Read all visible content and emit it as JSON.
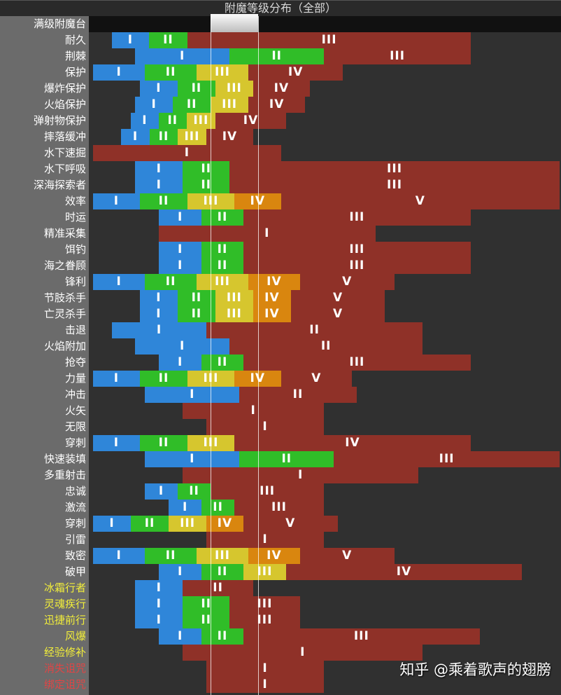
{
  "chart_data": {
    "type": "bar",
    "subtype": "horizontal-stacked-ranges",
    "title": "附魔等级分布（全部）",
    "xlim": [
      0,
      100
    ],
    "highlight_row": "满级附魔台",
    "highlight_range": [
      25.8,
      35.9
    ],
    "levels": [
      "I",
      "II",
      "III",
      "IV",
      "V"
    ],
    "colors": {
      "I": "#2f86d9",
      "II": "#30bd28",
      "III": "#d6c62e",
      "IV": "#d9860f",
      "last": "#8f3128"
    },
    "label_colors": {
      "normal": "#ffffff",
      "treasure": "#f2ee3a",
      "curse": "#e04545"
    },
    "rows": [
      {
        "name": "耐久",
        "kind": "normal",
        "bounds": [
          4.9,
          12.7,
          20.9,
          80.9
        ]
      },
      {
        "name": "荆棘",
        "kind": "normal",
        "bounds": [
          9.8,
          29.8,
          49.8,
          80.9
        ]
      },
      {
        "name": "保护",
        "kind": "normal",
        "bounds": [
          0.9,
          11.9,
          22.8,
          33.8,
          53.8
        ]
      },
      {
        "name": "爆炸保护",
        "kind": "normal",
        "bounds": [
          10.8,
          18.8,
          26.8,
          34.8,
          46.8
        ]
      },
      {
        "name": "火焰保护",
        "kind": "normal",
        "bounds": [
          9.8,
          17.8,
          25.8,
          33.8,
          45.8
        ]
      },
      {
        "name": "弹射物保护",
        "kind": "normal",
        "bounds": [
          8.9,
          14.8,
          20.7,
          26.8,
          41.8
        ]
      },
      {
        "name": "摔落缓冲",
        "kind": "normal",
        "bounds": [
          6.8,
          12.9,
          18.8,
          24.9,
          34.8
        ]
      },
      {
        "name": "水下速掘",
        "kind": "normal",
        "bounds": [
          0.9,
          40.7
        ]
      },
      {
        "name": "水下呼吸",
        "kind": "normal",
        "bounds": [
          9.8,
          19.9,
          29.8,
          99.7
        ]
      },
      {
        "name": "深海探索者",
        "kind": "normal",
        "bounds": [
          9.8,
          19.9,
          29.8,
          99.7
        ]
      },
      {
        "name": "效率",
        "kind": "normal",
        "bounds": [
          0.9,
          10.8,
          20.9,
          30.8,
          40.7,
          99.7
        ]
      },
      {
        "name": "时运",
        "kind": "normal",
        "bounds": [
          14.8,
          23.9,
          32.7,
          80.9
        ]
      },
      {
        "name": "精准采集",
        "kind": "normal",
        "bounds": [
          14.8,
          60.7
        ]
      },
      {
        "name": "饵钓",
        "kind": "normal",
        "bounds": [
          14.8,
          23.9,
          32.7,
          80.9
        ]
      },
      {
        "name": "海之眷顾",
        "kind": "normal",
        "bounds": [
          14.8,
          23.9,
          32.7,
          80.9
        ]
      },
      {
        "name": "锋利",
        "kind": "normal",
        "bounds": [
          0.9,
          11.9,
          22.8,
          33.8,
          44.7,
          64.7
        ]
      },
      {
        "name": "节肢杀手",
        "kind": "normal",
        "bounds": [
          10.8,
          18.8,
          26.8,
          34.8,
          42.8,
          62.7
        ]
      },
      {
        "name": "亡灵杀手",
        "kind": "normal",
        "bounds": [
          10.8,
          18.8,
          26.8,
          34.8,
          42.8,
          62.7
        ]
      },
      {
        "name": "击退",
        "kind": "normal",
        "bounds": [
          4.9,
          24.9,
          70.7
        ]
      },
      {
        "name": "火焰附加",
        "kind": "normal",
        "bounds": [
          9.8,
          29.8,
          70.7
        ]
      },
      {
        "name": "抢夺",
        "kind": "normal",
        "bounds": [
          14.8,
          23.9,
          32.7,
          80.9
        ]
      },
      {
        "name": "力量",
        "kind": "normal",
        "bounds": [
          0.9,
          10.8,
          20.9,
          30.8,
          40.7,
          55.7
        ]
      },
      {
        "name": "冲击",
        "kind": "normal",
        "bounds": [
          11.9,
          31.9,
          56.7
        ]
      },
      {
        "name": "火矢",
        "kind": "normal",
        "bounds": [
          19.9,
          49.8
        ]
      },
      {
        "name": "无限",
        "kind": "normal",
        "bounds": [
          24.9,
          49.8
        ]
      },
      {
        "name": "穿刺",
        "kind": "normal",
        "bounds": [
          0.9,
          10.8,
          20.9,
          30.8,
          80.9
        ]
      },
      {
        "name": "快速装填",
        "kind": "normal",
        "bounds": [
          11.9,
          31.9,
          51.9,
          99.7
        ]
      },
      {
        "name": "多重射击",
        "kind": "normal",
        "bounds": [
          19.9,
          69.8
        ]
      },
      {
        "name": "忠诚",
        "kind": "normal",
        "bounds": [
          11.9,
          18.8,
          25.8,
          49.8
        ]
      },
      {
        "name": "激流",
        "kind": "normal",
        "bounds": [
          16.9,
          23.9,
          30.8,
          49.8
        ]
      },
      {
        "name": "穿刺",
        "kind": "normal",
        "bounds": [
          0.9,
          8.9,
          16.9,
          24.9,
          32.7,
          52.7
        ]
      },
      {
        "name": "引雷",
        "kind": "normal",
        "bounds": [
          24.9,
          49.8
        ]
      },
      {
        "name": "致密",
        "kind": "normal",
        "bounds": [
          0.9,
          11.9,
          22.8,
          33.8,
          44.7,
          64.7
        ]
      },
      {
        "name": "破甲",
        "kind": "normal",
        "bounds": [
          14.8,
          23.9,
          32.7,
          41.8,
          91.7
        ]
      },
      {
        "name": "冰霜行者",
        "kind": "treasure",
        "bounds": [
          9.8,
          19.9,
          34.8
        ]
      },
      {
        "name": "灵魂疾行",
        "kind": "treasure",
        "bounds": [
          9.8,
          19.9,
          29.8,
          44.7
        ]
      },
      {
        "name": "迅捷前行",
        "kind": "treasure",
        "bounds": [
          9.8,
          19.9,
          29.8,
          44.7
        ]
      },
      {
        "name": "风爆",
        "kind": "treasure",
        "bounds": [
          14.8,
          23.9,
          32.7,
          82.8
        ]
      },
      {
        "name": "经验修补",
        "kind": "treasure",
        "bounds": [
          19.9,
          70.7
        ]
      },
      {
        "name": "消失诅咒",
        "kind": "curse",
        "bounds": [
          24.9,
          49.8
        ]
      },
      {
        "name": "绑定诅咒",
        "kind": "curse",
        "bounds": [
          24.9,
          49.8
        ]
      }
    ]
  },
  "watermark": "知乎 @乘着歌声的翅膀"
}
